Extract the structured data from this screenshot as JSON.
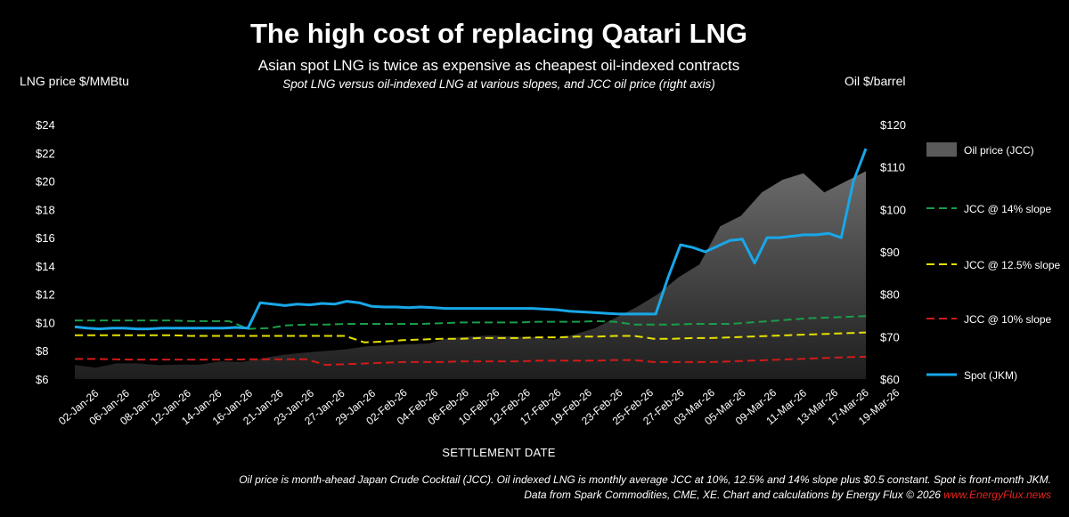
{
  "chart_data": {
    "type": "line+area",
    "title": "The high cost of replacing Qatari LNG",
    "subtitle": "Asian spot LNG is twice as expensive as cheapest oil-indexed contracts",
    "note": "Spot LNG versus oil-indexed LNG at various slopes, and JCC oil price (right axis)",
    "ylabel_left": "LNG price $/MMBtu",
    "ylabel_right": "Oil $/barrel",
    "xlabel": "SETTLEMENT DATE",
    "ylim_left": [
      6,
      24
    ],
    "ylim_right": [
      60,
      120
    ],
    "yticks_left": [
      "$24",
      "$22",
      "$20",
      "$18",
      "$16",
      "$14",
      "$12",
      "$10",
      "$8",
      "$6"
    ],
    "yticks_right": [
      "$120",
      "$110",
      "$100",
      "$90",
      "$80",
      "$70",
      "$60"
    ],
    "x_tick_labels": [
      "02-Jan-26",
      "06-Jan-26",
      "08-Jan-26",
      "12-Jan-26",
      "14-Jan-26",
      "16-Jan-26",
      "21-Jan-26",
      "23-Jan-26",
      "27-Jan-26",
      "29-Jan-26",
      "02-Feb-26",
      "04-Feb-26",
      "06-Feb-26",
      "10-Feb-26",
      "12-Feb-26",
      "17-Feb-26",
      "19-Feb-26",
      "23-Feb-26",
      "25-Feb-26",
      "27-Feb-26",
      "03-Mar-26",
      "05-Mar-26",
      "09-Mar-26",
      "11-Mar-26",
      "13-Mar-26",
      "17-Mar-26",
      "19-Mar-26"
    ],
    "series": [
      {
        "name": "Oil price (JCC)",
        "axis": "right",
        "kind": "area",
        "color": "#555555",
        "values": [
          63.3,
          62.7,
          63.7,
          63.7,
          63.3,
          63.4,
          63.4,
          64.2,
          64.0,
          64.9,
          65.7,
          66.2,
          66.6,
          67.0,
          67.7,
          68.0,
          68.2,
          68.4,
          69.7,
          70.0,
          70.3,
          70.0,
          69.9,
          69.3,
          70.5,
          72.0,
          74.5,
          77.0,
          80.0,
          84.0,
          87.0,
          96.0,
          98.5,
          104.0,
          107.0,
          108.5,
          104.0,
          106.5,
          109.0
        ]
      },
      {
        "name": "JCC @ 14% slope",
        "axis": "left",
        "kind": "dashed",
        "color": "#1a9e4a",
        "values": [
          10.15,
          10.15,
          10.15,
          10.15,
          10.15,
          10.15,
          10.1,
          10.1,
          10.1,
          9.55,
          9.6,
          9.8,
          9.85,
          9.85,
          9.9,
          9.9,
          9.9,
          9.9,
          9.9,
          9.95,
          10.0,
          10.0,
          10.0,
          10.0,
          10.05,
          10.05,
          10.05,
          10.1,
          10.05,
          9.85,
          9.85,
          9.85,
          9.9,
          9.9,
          9.9,
          10.0,
          10.1,
          10.2,
          10.3,
          10.35,
          10.4,
          10.45
        ]
      },
      {
        "name": "JCC @ 12.5% slope",
        "axis": "left",
        "kind": "dashed",
        "color": "#e6e000",
        "values": [
          9.1,
          9.1,
          9.1,
          9.1,
          9.1,
          9.1,
          9.05,
          9.05,
          9.05,
          9.05,
          9.05,
          9.05,
          9.05,
          9.05,
          9.05,
          8.6,
          8.65,
          8.75,
          8.8,
          8.85,
          8.85,
          8.9,
          8.9,
          8.9,
          8.95,
          8.95,
          9.0,
          9.0,
          9.05,
          9.05,
          8.85,
          8.85,
          8.9,
          8.9,
          8.95,
          9.0,
          9.05,
          9.1,
          9.15,
          9.2,
          9.25,
          9.3
        ]
      },
      {
        "name": "JCC @ 10% slope",
        "axis": "left",
        "kind": "dashed",
        "color": "#d21a1a",
        "values": [
          7.42,
          7.42,
          7.4,
          7.38,
          7.38,
          7.38,
          7.38,
          7.38,
          7.38,
          7.4,
          7.4,
          7.4,
          7.4,
          7.0,
          7.05,
          7.1,
          7.15,
          7.2,
          7.2,
          7.2,
          7.25,
          7.25,
          7.25,
          7.25,
          7.3,
          7.3,
          7.3,
          7.3,
          7.35,
          7.35,
          7.2,
          7.2,
          7.2,
          7.2,
          7.25,
          7.3,
          7.35,
          7.4,
          7.45,
          7.5,
          7.55,
          7.58
        ]
      },
      {
        "name": "Spot (JKM)",
        "axis": "left",
        "kind": "line",
        "color": "#18a7e8",
        "values": [
          9.7,
          9.6,
          9.55,
          9.6,
          9.6,
          9.55,
          9.55,
          9.6,
          9.6,
          9.6,
          9.6,
          9.6,
          9.6,
          9.65,
          9.6,
          11.4,
          11.3,
          11.2,
          11.3,
          11.25,
          11.35,
          11.3,
          11.5,
          11.4,
          11.15,
          11.1,
          11.1,
          11.05,
          11.1,
          11.05,
          11.0,
          11.0,
          11.0,
          11.0,
          11.0,
          11.0,
          11.0,
          11.0,
          10.95,
          10.9,
          10.8,
          10.75,
          10.7,
          10.65,
          10.6,
          10.6,
          10.6,
          10.6,
          13.2,
          15.5,
          15.3,
          15.0,
          15.4,
          15.8,
          15.9,
          14.2,
          16.0,
          16.0,
          16.1,
          16.2,
          16.2,
          16.3,
          16.0,
          20.0,
          22.3
        ]
      }
    ]
  },
  "footer": {
    "line1": "Oil price is month-ahead Japan Crude Cocktail (JCC). Oil indexed LNG is monthly average JCC at 10%, 12.5% and 14% slope plus $0.5 constant. Spot is front-month JKM.",
    "line2": "Data from Spark Commodities, CME, XE. Chart and calculations by Energy Flux © 2026",
    "site": "www.EnergyFlux.news"
  }
}
